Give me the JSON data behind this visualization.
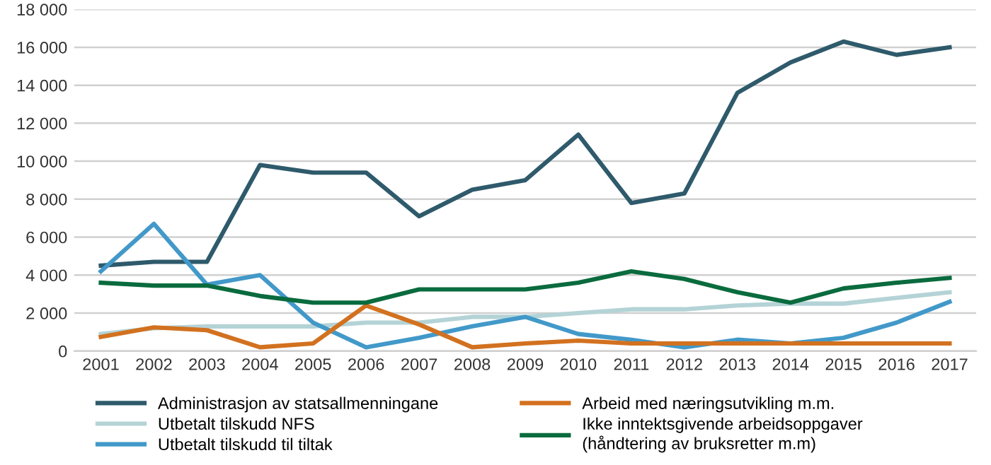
{
  "chart_data": {
    "type": "line",
    "categories": [
      "2001",
      "2002",
      "2003",
      "2004",
      "2005",
      "2006",
      "2007",
      "2008",
      "2009",
      "2010",
      "2011",
      "2012",
      "2013",
      "2014",
      "2015",
      "2016",
      "2017"
    ],
    "ylim": [
      0,
      18000
    ],
    "yticks": [
      0,
      {
        "value": 2000,
        "label": "2 000"
      },
      {
        "value": 4000,
        "label": "4 000"
      },
      {
        "value": 6000,
        "label": "6 000"
      },
      {
        "value": 8000,
        "label": "8 000"
      },
      {
        "value": 10000,
        "label": "10 000"
      },
      {
        "value": 12000,
        "label": "12 000"
      },
      {
        "value": 14000,
        "label": "14 000"
      },
      {
        "value": 16000,
        "label": "16 000"
      },
      {
        "value": 18000,
        "label": "18 000"
      }
    ],
    "grid": "y",
    "legend": "bottom",
    "marker": "none",
    "line_style": "solid",
    "series": [
      {
        "name": "Administrasjon av statsallmenningane",
        "color": "#2e5a6b",
        "values": [
          4500,
          4700,
          4700,
          9800,
          9400,
          9400,
          7100,
          8500,
          9000,
          11400,
          7800,
          8300,
          13600,
          15200,
          16300,
          15600,
          16000
        ]
      },
      {
        "name": "Utbetalt tilskudd NFS",
        "color": "#b4d3d6",
        "values": [
          900,
          1200,
          1300,
          1300,
          1300,
          1500,
          1500,
          1800,
          1800,
          2000,
          2200,
          2200,
          2400,
          2500,
          2500,
          2800,
          3100
        ]
      },
      {
        "name": "Utbetalt tilskudd til tiltak",
        "color": "#4299c9",
        "values": [
          4200,
          6700,
          3500,
          4000,
          1500,
          200,
          700,
          1300,
          1800,
          900,
          600,
          200,
          600,
          400,
          700,
          1500,
          2600
        ]
      },
      {
        "name": "Arbeid med næringsutvikling m.m.",
        "color": "#d2711f",
        "values": [
          750,
          1250,
          1100,
          200,
          400,
          2400,
          1400,
          200,
          400,
          550,
          400,
          400,
          400,
          400,
          400,
          400,
          400
        ]
      },
      {
        "name": "Ikke inntektsgivende arbeidsoppgaver\n(håndtering av bruksretter m.m)",
        "color": "#0a6b3e",
        "values": [
          3600,
          3450,
          3450,
          2900,
          2550,
          2550,
          3250,
          3250,
          3250,
          3600,
          4200,
          3800,
          3100,
          2550,
          3300,
          3600,
          3850
        ]
      }
    ]
  }
}
